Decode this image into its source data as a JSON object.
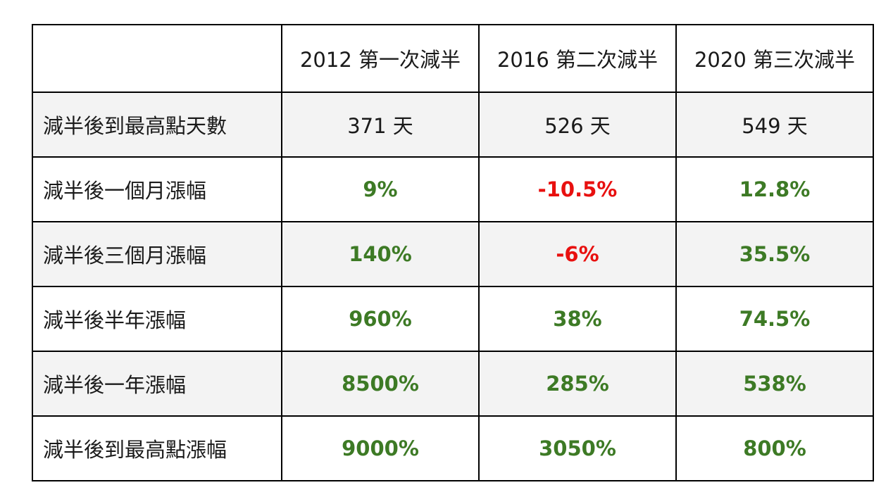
{
  "colors": {
    "positive": "#3d7a25",
    "negative": "#e8100f",
    "neutral": "#1a1a1a"
  },
  "table": {
    "corner": "",
    "headers": [
      "2012 第一次減半",
      "2016 第二次減半",
      "2020 第三次減半"
    ],
    "rows": [
      {
        "label": "減半後到最高點天數",
        "values": [
          {
            "text": "371 天",
            "tone": "neutral"
          },
          {
            "text": "526 天",
            "tone": "neutral"
          },
          {
            "text": "549 天",
            "tone": "neutral"
          }
        ]
      },
      {
        "label": "減半後一個月漲幅",
        "values": [
          {
            "text": "9%",
            "tone": "positive"
          },
          {
            "text": "-10.5%",
            "tone": "negative"
          },
          {
            "text": "12.8%",
            "tone": "positive"
          }
        ]
      },
      {
        "label": "減半後三個月漲幅",
        "values": [
          {
            "text": "140%",
            "tone": "positive"
          },
          {
            "text": "-6%",
            "tone": "negative"
          },
          {
            "text": "35.5%",
            "tone": "positive"
          }
        ]
      },
      {
        "label": "減半後半年漲幅",
        "values": [
          {
            "text": "960%",
            "tone": "positive"
          },
          {
            "text": "38%",
            "tone": "positive"
          },
          {
            "text": "74.5%",
            "tone": "positive"
          }
        ]
      },
      {
        "label": "減半後一年漲幅",
        "values": [
          {
            "text": "8500%",
            "tone": "positive"
          },
          {
            "text": "285%",
            "tone": "positive"
          },
          {
            "text": "538%",
            "tone": "positive"
          }
        ]
      },
      {
        "label": "減半後到最高點漲幅",
        "values": [
          {
            "text": "9000%",
            "tone": "positive"
          },
          {
            "text": "3050%",
            "tone": "positive"
          },
          {
            "text": "800%",
            "tone": "positive"
          }
        ]
      }
    ]
  }
}
